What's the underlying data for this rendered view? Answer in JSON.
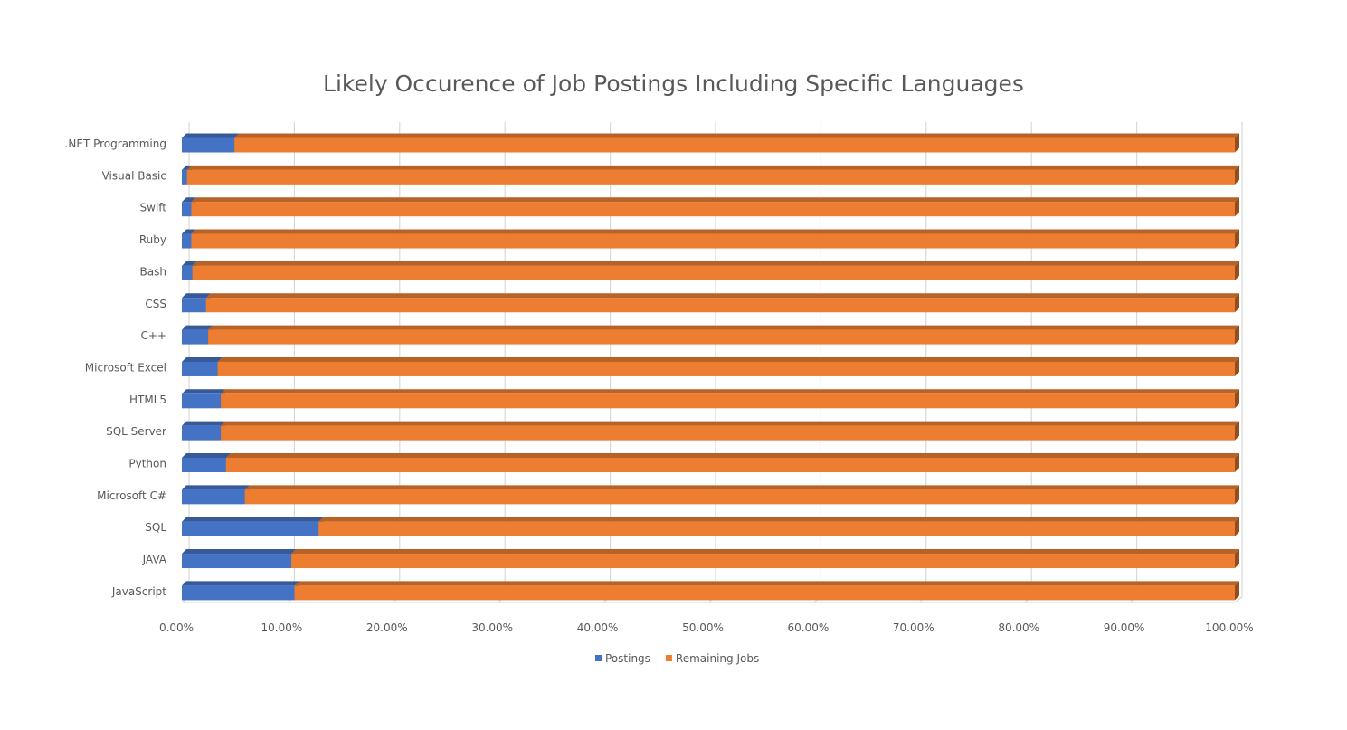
{
  "chart_data": {
    "type": "bar",
    "orientation": "horizontal",
    "stacked": "100%",
    "title": "Likely Occurence of Job Postings Including Specific Languages",
    "categories": [
      ".NET Programming",
      "Visual Basic",
      "Swift",
      "Ruby",
      "Bash",
      "CSS",
      "C++",
      "Microsoft Excel",
      "HTML5",
      "SQL Server",
      "Python",
      "Microsoft C#",
      "SQL",
      "JAVA",
      "JavaScript"
    ],
    "series": [
      {
        "name": "Postings",
        "color": "#4472C4",
        "values": [
          5.0,
          0.5,
          0.9,
          0.9,
          1.0,
          2.3,
          2.5,
          3.4,
          3.7,
          3.7,
          4.2,
          6.0,
          13.0,
          10.4,
          10.7
        ]
      },
      {
        "name": "Remaining Jobs",
        "color": "#ED7D31",
        "values": [
          95.0,
          99.5,
          99.1,
          99.1,
          99.0,
          97.7,
          97.5,
          96.6,
          96.3,
          96.3,
          95.8,
          94.0,
          87.0,
          89.6,
          89.3
        ]
      }
    ],
    "xlim": [
      0,
      100
    ],
    "x_ticks": [
      "0.00%",
      "10.00%",
      "20.00%",
      "30.00%",
      "40.00%",
      "50.00%",
      "60.00%",
      "70.00%",
      "80.00%",
      "90.00%",
      "100.00%"
    ],
    "grid": true,
    "legend": "bottom",
    "xlabel": "",
    "ylabel": ""
  }
}
